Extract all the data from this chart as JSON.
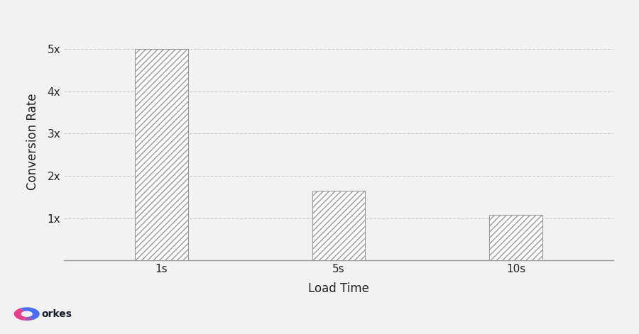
{
  "categories": [
    "1s",
    "5s",
    "10s"
  ],
  "values": [
    5.0,
    1.65,
    1.08
  ],
  "bar_edge_color": "#999999",
  "hatch_pattern": "////",
  "xlabel": "Load Time",
  "ylabel": "Conversion Rate",
  "yticks": [
    1,
    2,
    3,
    4,
    5
  ],
  "ytick_labels": [
    "1x",
    "2x",
    "3x",
    "4x",
    "5x"
  ],
  "ylim": [
    0,
    5.6
  ],
  "background_color": "#f2f2f2",
  "grid_color": "#cccccc",
  "xlabel_fontsize": 12,
  "ylabel_fontsize": 12,
  "tick_fontsize": 11,
  "bar_width": 0.3,
  "logo_text": "orkes",
  "bar_positions": [
    0,
    1,
    2
  ]
}
